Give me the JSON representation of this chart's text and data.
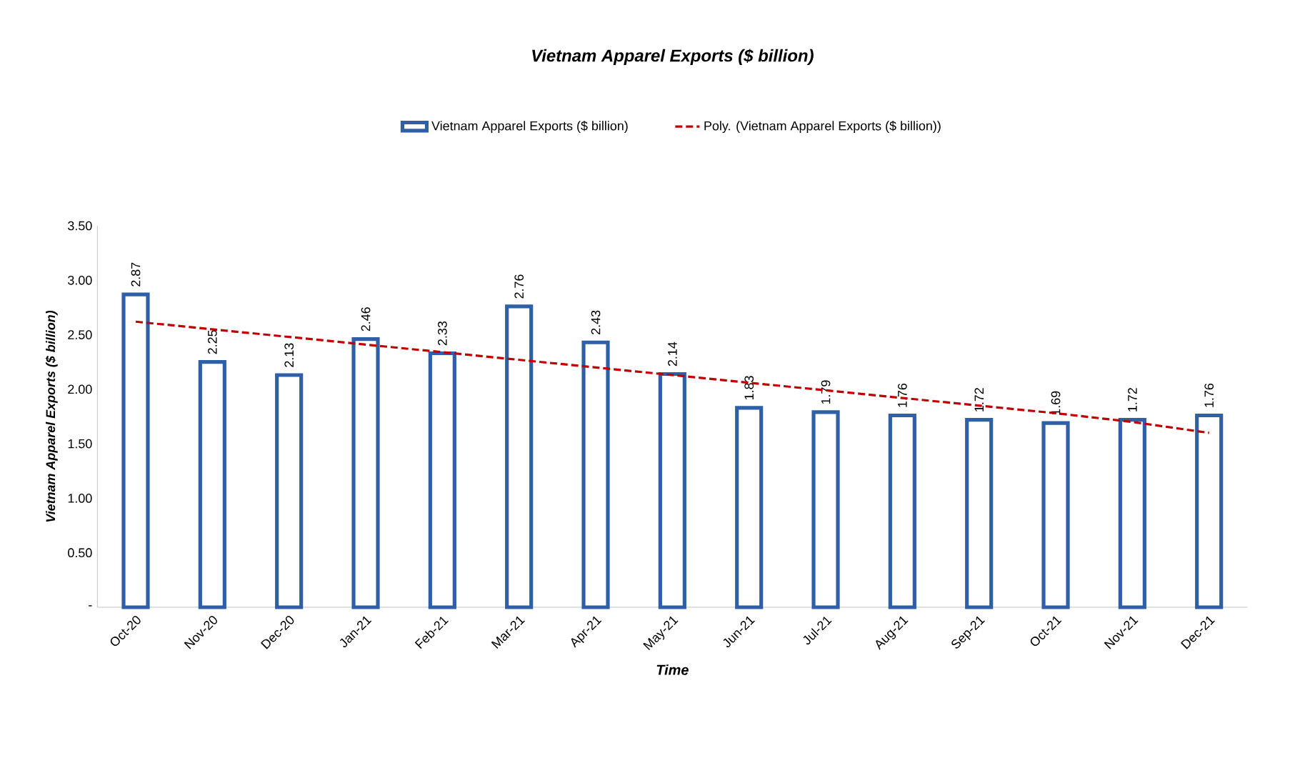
{
  "chart_data": {
    "type": "bar",
    "title": "Vietnam Apparel Exports ($ billion)",
    "xlabel": "Time",
    "ylabel": "Vietnam Apparel Exports ($ billion)",
    "categories": [
      "Oct-20",
      "Nov-20",
      "Dec-20",
      "Jan-21",
      "Feb-21",
      "Mar-21",
      "Apr-21",
      "May-21",
      "Jun-21",
      "Jul-21",
      "Aug-21",
      "Sep-21",
      "Oct-21",
      "Nov-21",
      "Dec-21"
    ],
    "series": [
      {
        "name": "Vietnam Apparel Exports ($ billion)",
        "color": "#2f5fa7",
        "values": [
          2.87,
          2.25,
          2.13,
          2.46,
          2.33,
          2.76,
          2.43,
          2.14,
          1.83,
          1.79,
          1.76,
          1.72,
          1.69,
          1.72,
          1.76
        ],
        "value_labels": [
          "2.87",
          "2.25",
          "2.13",
          "2.46",
          "2.33",
          "2.76",
          "2.43",
          "2.14",
          "1.83",
          "1.79",
          "1.76",
          "1.72",
          "1.69",
          "1.72",
          "1.76"
        ]
      },
      {
        "name": "Poly. (Vietnam Apparel Exports ($ billion))",
        "type": "line",
        "line_style": "dashed",
        "color": "#c00000",
        "values": [
          2.62,
          2.55,
          2.48,
          2.41,
          2.34,
          2.27,
          2.2,
          2.13,
          2.06,
          1.99,
          1.92,
          1.85,
          1.78,
          1.7,
          1.6
        ]
      }
    ],
    "ylim": [
      0,
      3.5
    ],
    "yticks": [
      {
        "value": 0,
        "label": "-"
      },
      {
        "value": 0.5,
        "label": "0.50"
      },
      {
        "value": 1,
        "label": "1.00"
      },
      {
        "value": 1.5,
        "label": "1.50"
      },
      {
        "value": 2,
        "label": "2.00"
      },
      {
        "value": 2.5,
        "label": "2.50"
      },
      {
        "value": 3,
        "label": "3.00"
      },
      {
        "value": 3.5,
        "label": "3.50"
      }
    ],
    "grid": false,
    "legend": "top",
    "marker": "none"
  }
}
